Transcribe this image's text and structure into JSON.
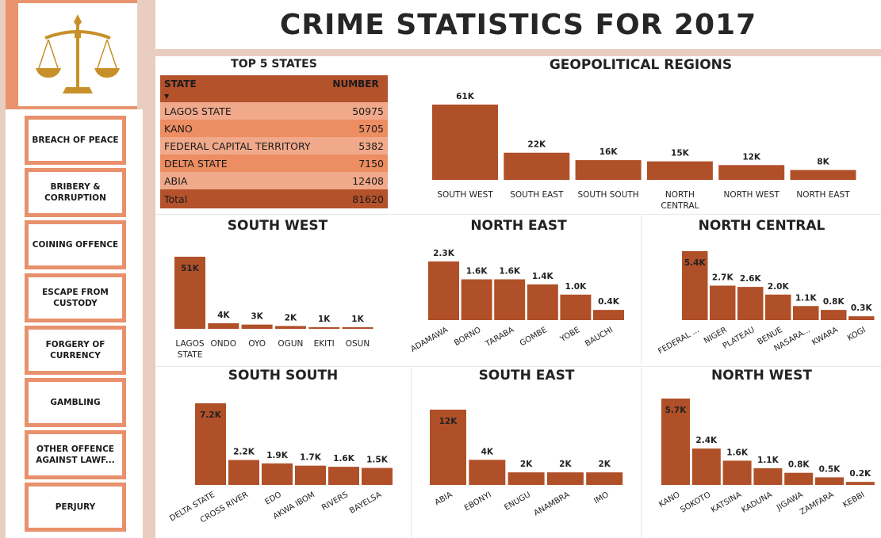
{
  "title": "CRIME STATISTICS FOR 2017",
  "colors": {
    "bar": "#b05028",
    "accent": "#e9946e",
    "sidebar_bg": "#e9cdc1"
  },
  "sidebar": {
    "logo_icon": "scales-of-justice-icon",
    "items": [
      {
        "label": "BREACH OF PEACE"
      },
      {
        "label": "BRIBERY & CORRUPTION"
      },
      {
        "label": "COINING OFFENCE"
      },
      {
        "label": "ESCAPE FROM CUSTODY"
      },
      {
        "label": "FORGERY OF CURRENCY"
      },
      {
        "label": "GAMBLING"
      },
      {
        "label": "OTHER OFFENCE AGAINST LAWF..."
      },
      {
        "label": "PERJURY"
      }
    ]
  },
  "top5": {
    "title": "TOP 5 STATES",
    "headers": [
      "STATE",
      "NUMBER"
    ],
    "rows": [
      [
        "LAGOS STATE",
        "50975"
      ],
      [
        "KANO",
        "5705"
      ],
      [
        "FEDERAL CAPITAL TERRITORY",
        "5382"
      ],
      [
        "DELTA STATE",
        "7150"
      ],
      [
        "ABIA",
        "12408"
      ]
    ],
    "total": [
      "Total",
      "81620"
    ]
  },
  "chart_data": [
    {
      "id": "geo",
      "type": "bar",
      "title": "GEOPOLITICAL REGIONS",
      "categories": [
        "SOUTH WEST",
        "SOUTH EAST",
        "SOUTH SOUTH",
        "NORTH CENTRAL",
        "NORTH WEST",
        "NORTH EAST"
      ],
      "values": [
        61,
        22,
        16,
        15,
        12,
        8
      ],
      "labels": [
        "61K",
        "22K",
        "16K",
        "15K",
        "12K",
        "8K"
      ]
    },
    {
      "id": "sw",
      "type": "bar",
      "title": "SOUTH WEST",
      "categories": [
        "LAGOS STATE",
        "ONDO",
        "OYO",
        "OGUN",
        "EKITI",
        "OSUN"
      ],
      "values": [
        51,
        4,
        3,
        2,
        1,
        1
      ],
      "labels": [
        "51K",
        "4K",
        "3K",
        "2K",
        "1K",
        "1K"
      ]
    },
    {
      "id": "ne",
      "type": "bar",
      "title": "NORTH EAST",
      "categories": [
        "ADAMAWA",
        "BORNO",
        "TARABA",
        "GOMBE",
        "YOBE",
        "BAUCHI"
      ],
      "values": [
        2.3,
        1.6,
        1.6,
        1.4,
        1.0,
        0.4
      ],
      "labels": [
        "2.3K",
        "1.6K",
        "1.6K",
        "1.4K",
        "1.0K",
        "0.4K"
      ]
    },
    {
      "id": "nc",
      "type": "bar",
      "title": "NORTH CENTRAL",
      "categories": [
        "FEDERAL ...",
        "NIGER",
        "PLATEAU",
        "BENUE",
        "NASARA...",
        "KWARA",
        "KOGI"
      ],
      "values": [
        5.4,
        2.7,
        2.6,
        2.0,
        1.1,
        0.8,
        0.3
      ],
      "labels": [
        "5.4K",
        "2.7K",
        "2.6K",
        "2.0K",
        "1.1K",
        "0.8K",
        "0.3K"
      ]
    },
    {
      "id": "ss",
      "type": "bar",
      "title": "SOUTH SOUTH",
      "categories": [
        "DELTA STATE",
        "CROSS RIVER",
        "EDO",
        "AKWA IBOM",
        "RIVERS",
        "BAYELSA"
      ],
      "values": [
        7.2,
        2.2,
        1.9,
        1.7,
        1.6,
        1.5
      ],
      "labels": [
        "7.2K",
        "2.2K",
        "1.9K",
        "1.7K",
        "1.6K",
        "1.5K"
      ]
    },
    {
      "id": "se",
      "type": "bar",
      "title": "SOUTH EAST",
      "categories": [
        "ABIA",
        "EBONYI",
        "ENUGU",
        "ANAMBRA",
        "IMO"
      ],
      "values": [
        12,
        4,
        2,
        2,
        2
      ],
      "labels": [
        "12K",
        "4K",
        "2K",
        "2K",
        "2K"
      ]
    },
    {
      "id": "nw",
      "type": "bar",
      "title": "NORTH WEST",
      "categories": [
        "KANO",
        "SOKOTO",
        "KATSINA",
        "KADUNA",
        "JIGAWA",
        "ZAMFARA",
        "KEBBI"
      ],
      "values": [
        5.7,
        2.4,
        1.6,
        1.1,
        0.8,
        0.5,
        0.2
      ],
      "labels": [
        "5.7K",
        "2.4K",
        "1.6K",
        "1.1K",
        "0.8K",
        "0.5K",
        "0.2K"
      ]
    }
  ]
}
